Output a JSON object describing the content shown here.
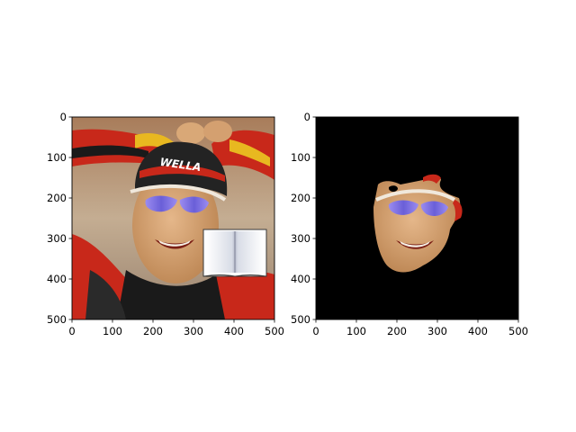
{
  "chart_data": [
    {
      "type": "image",
      "description_content": "photo",
      "xlim": [
        0,
        500
      ],
      "ylim": [
        500,
        0
      ],
      "xticks": [
        "0",
        "100",
        "200",
        "300",
        "400",
        "500"
      ],
      "yticks": [
        "0",
        "100",
        "200",
        "300",
        "400",
        "500"
      ],
      "overlay_icon": "open-book-icon",
      "wordmark_on_cap": "WELLA"
    },
    {
      "type": "image",
      "description_content": "masked-face-on-black",
      "xlim": [
        0,
        500
      ],
      "ylim": [
        500,
        0
      ],
      "xticks": [
        "0",
        "100",
        "200",
        "300",
        "400",
        "500"
      ],
      "yticks": [
        "0",
        "100",
        "200",
        "300",
        "400",
        "500"
      ],
      "background_color": "#000000"
    }
  ],
  "colors": {
    "skin": "#d9a877",
    "skin_shadow": "#b9824f",
    "jersey_red": "#c8281a",
    "jersey_black": "#1a1a1a",
    "stripe_yellow": "#e8b820",
    "lens_blue": "#7a6fe0",
    "cap_black": "#232323",
    "background_beige": "#b89f84"
  }
}
